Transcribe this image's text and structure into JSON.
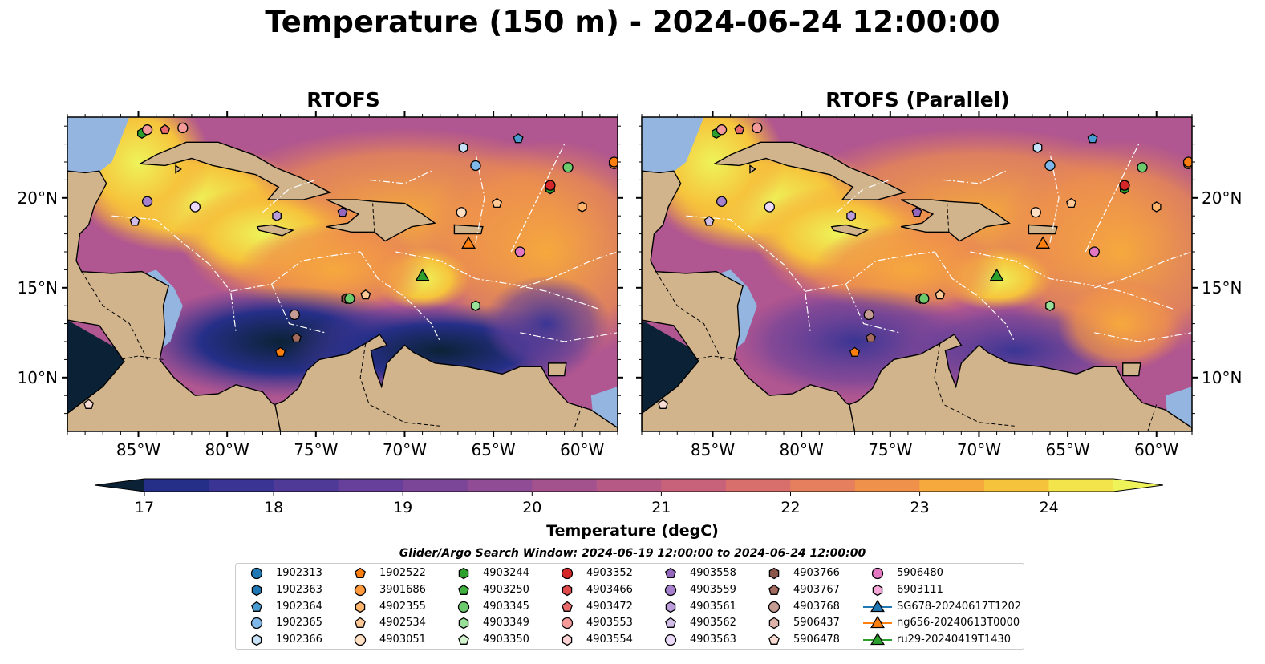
{
  "title": "Temperature (150 m) - 2024-06-24 12:00:00",
  "panels": [
    {
      "title": "RTOFS"
    },
    {
      "title": "RTOFS (Parallel)"
    }
  ],
  "map": {
    "lon_range": [
      -89,
      -58
    ],
    "lat_range": [
      7,
      24.5
    ],
    "lon_ticks": [
      "85°W",
      "80°W",
      "75°W",
      "70°W",
      "65°W",
      "60°W"
    ],
    "lat_ticks": [
      "20°N",
      "15°N",
      "10°N"
    ],
    "colors": {
      "ocean_shelf": "#93b5e0",
      "land": "#d1b48c",
      "warm": "#eef35a",
      "cold": "#0b2236"
    }
  },
  "colorbar": {
    "label": "Temperature (degC)",
    "ticks": [
      "17",
      "18",
      "19",
      "20",
      "21",
      "22",
      "23",
      "24"
    ],
    "range": [
      16.75,
      24.5
    ],
    "colors": [
      "#0b2236",
      "#162a5a",
      "#262f88",
      "#3a3594",
      "#4f3a98",
      "#66409a",
      "#7b4698",
      "#904c94",
      "#a3528e",
      "#b65985",
      "#c8627b",
      "#d86f6d",
      "#e57f5d",
      "#ef914b",
      "#f6a93d",
      "#f6c43c",
      "#f4e44b",
      "#eef35a"
    ]
  },
  "search_window": "Glider/Argo Search Window: 2024-06-19 12:00:00 to 2024-06-24 12:00:00",
  "legend": [
    {
      "label": "1902313",
      "marker": "circle",
      "color": "#1f77b4"
    },
    {
      "label": "1902363",
      "marker": "hexagon",
      "color": "#1f77b4"
    },
    {
      "label": "1902364",
      "marker": "pentagon",
      "color": "#4a9bd1"
    },
    {
      "label": "1902365",
      "marker": "circle",
      "color": "#7fb8e8"
    },
    {
      "label": "1902366",
      "marker": "hexagon",
      "color": "#c6e0f7"
    },
    {
      "label": "1902522",
      "marker": "pentagon",
      "color": "#ff7f0e"
    },
    {
      "label": "3901686",
      "marker": "circle",
      "color": "#ff9a3c"
    },
    {
      "label": "4902355",
      "marker": "hexagon",
      "color": "#ffb46a"
    },
    {
      "label": "4902534",
      "marker": "pentagon",
      "color": "#ffc996"
    },
    {
      "label": "4903051",
      "marker": "circle",
      "color": "#ffe0c2"
    },
    {
      "label": "4903244",
      "marker": "hexagon",
      "color": "#2ca02c"
    },
    {
      "label": "4903250",
      "marker": "pentagon",
      "color": "#3fb13f"
    },
    {
      "label": "4903345",
      "marker": "circle",
      "color": "#6cc96c"
    },
    {
      "label": "4903349",
      "marker": "hexagon",
      "color": "#98df98"
    },
    {
      "label": "4903350",
      "marker": "pentagon",
      "color": "#d4f4d0"
    },
    {
      "label": "4903352",
      "marker": "circle",
      "color": "#d62728"
    },
    {
      "label": "4903466",
      "marker": "hexagon",
      "color": "#e04a4a"
    },
    {
      "label": "4903472",
      "marker": "pentagon",
      "color": "#e86a6a"
    },
    {
      "label": "4903553",
      "marker": "circle",
      "color": "#f59a9a"
    },
    {
      "label": "4903554",
      "marker": "hexagon",
      "color": "#fcd2d2"
    },
    {
      "label": "4903558",
      "marker": "pentagon",
      "color": "#9467bd"
    },
    {
      "label": "4903559",
      "marker": "circle",
      "color": "#a680cc"
    },
    {
      "label": "4903561",
      "marker": "hexagon",
      "color": "#bb9ddb"
    },
    {
      "label": "4903562",
      "marker": "pentagon",
      "color": "#d2bde9"
    },
    {
      "label": "4903563",
      "marker": "circle",
      "color": "#ead9f8"
    },
    {
      "label": "4903766",
      "marker": "hexagon",
      "color": "#8c564b"
    },
    {
      "label": "4903767",
      "marker": "pentagon",
      "color": "#a36a5e"
    },
    {
      "label": "4903768",
      "marker": "circle",
      "color": "#c49c94"
    },
    {
      "label": "5906437",
      "marker": "hexagon",
      "color": "#e0b3a8"
    },
    {
      "label": "5906478",
      "marker": "pentagon",
      "color": "#f8dcd3"
    },
    {
      "label": "5906480",
      "marker": "circle",
      "color": "#e377c2"
    },
    {
      "label": "6903111",
      "marker": "hexagon",
      "color": "#f7a6d8"
    },
    {
      "label": "SG678-20240617T1202",
      "marker": "triangle-line",
      "color": "#1f77b4"
    },
    {
      "label": "ng656-20240613T0000",
      "marker": "triangle-line",
      "color": "#ff7f0e"
    },
    {
      "label": "ru29-20240419T1430",
      "marker": "triangle-line",
      "color": "#2ca02c"
    }
  ],
  "markers_on_map": [
    {
      "lon": -84.5,
      "lat": 19.8,
      "marker": "circle",
      "color": "#a680cc"
    },
    {
      "lon": -81.8,
      "lat": 19.5,
      "marker": "circle",
      "color": "#ead9f8"
    },
    {
      "lon": -85.2,
      "lat": 18.7,
      "marker": "pentagon",
      "color": "#d2bde9"
    },
    {
      "lon": -77.2,
      "lat": 19.0,
      "marker": "hexagon",
      "color": "#bb9ddb"
    },
    {
      "lon": -73.5,
      "lat": 19.2,
      "marker": "pentagon",
      "color": "#9467bd"
    },
    {
      "lon": -84.8,
      "lat": 23.6,
      "marker": "hexagon",
      "color": "#2ca02c"
    },
    {
      "lon": -84.5,
      "lat": 23.8,
      "marker": "circle",
      "color": "#f59a9a"
    },
    {
      "lon": -83.5,
      "lat": 23.8,
      "marker": "pentagon",
      "color": "#e86a6a"
    },
    {
      "lon": -82.5,
      "lat": 23.9,
      "marker": "circle",
      "color": "#f59a9a"
    },
    {
      "lon": -66.7,
      "lat": 22.8,
      "marker": "hexagon",
      "color": "#c6e0f7"
    },
    {
      "lon": -63.6,
      "lat": 23.3,
      "marker": "pentagon",
      "color": "#4a9bd1"
    },
    {
      "lon": -66.0,
      "lat": 21.8,
      "marker": "circle",
      "color": "#7fb8e8"
    },
    {
      "lon": -61.8,
      "lat": 20.5,
      "marker": "hexagon",
      "color": "#2ca02c"
    },
    {
      "lon": -61.8,
      "lat": 20.7,
      "marker": "circle",
      "color": "#d62728"
    },
    {
      "lon": -60.8,
      "lat": 21.7,
      "marker": "circle",
      "color": "#6cc96c"
    },
    {
      "lon": -58.2,
      "lat": 21.9,
      "marker": "circle",
      "color": "#ff9a3c"
    },
    {
      "lon": -58.2,
      "lat": 22.0,
      "marker": "circle",
      "color": "#ff7f0e"
    },
    {
      "lon": -60.0,
      "lat": 19.5,
      "marker": "hexagon",
      "color": "#ffb46a"
    },
    {
      "lon": -64.8,
      "lat": 19.7,
      "marker": "pentagon",
      "color": "#ffc996"
    },
    {
      "lon": -66.8,
      "lat": 19.2,
      "marker": "circle",
      "color": "#ffe0c2"
    },
    {
      "lon": -63.5,
      "lat": 17.0,
      "marker": "circle",
      "color": "#e377c2"
    },
    {
      "lon": -66.0,
      "lat": 14.0,
      "marker": "hexagon",
      "color": "#98df98"
    },
    {
      "lon": -72.2,
      "lat": 14.6,
      "marker": "pentagon",
      "color": "#ffc996"
    },
    {
      "lon": -73.3,
      "lat": 14.4,
      "marker": "hexagon",
      "color": "#8c564b"
    },
    {
      "lon": -73.1,
      "lat": 14.4,
      "marker": "circle",
      "color": "#6cc96c"
    },
    {
      "lon": -76.2,
      "lat": 13.5,
      "marker": "circle",
      "color": "#c49c94"
    },
    {
      "lon": -76.1,
      "lat": 12.2,
      "marker": "pentagon",
      "color": "#a36a5e"
    },
    {
      "lon": -77.0,
      "lat": 11.4,
      "marker": "pentagon",
      "color": "#ff7f0e"
    },
    {
      "lon": -87.8,
      "lat": 8.5,
      "marker": "pentagon",
      "color": "#f8dcd3"
    },
    {
      "lon": -66.4,
      "lat": 17.5,
      "marker": "triangle",
      "color": "#ff7f0e"
    },
    {
      "lon": -69.0,
      "lat": 15.7,
      "marker": "triangle",
      "color": "#2ca02c"
    }
  ]
}
